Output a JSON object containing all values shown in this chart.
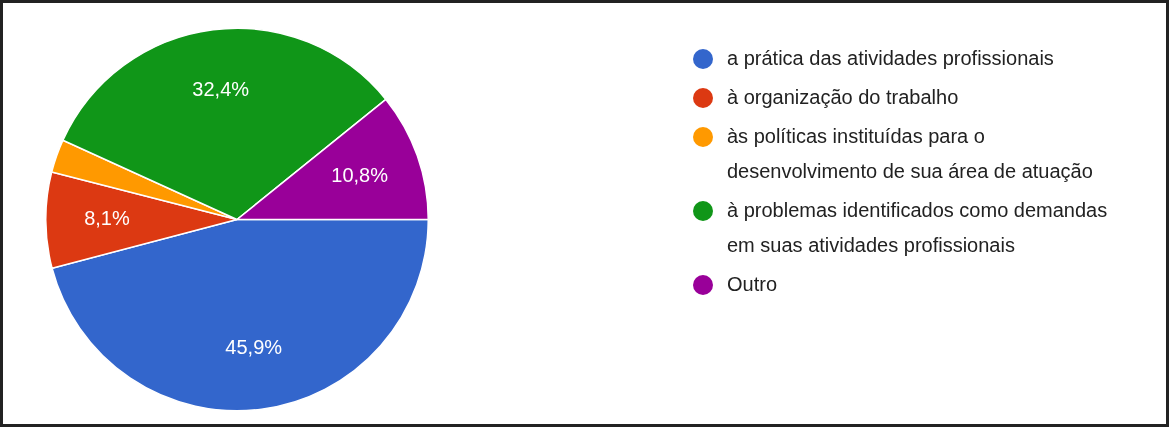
{
  "chart_data": {
    "type": "pie",
    "categories": [
      "a prática das atividades profissionais",
      "à organização do trabalho",
      "às políticas instituídas para o desenvolvimento de sua área de atuação",
      "à problemas identificados como demandas em suas atividades profissionais",
      "Outro"
    ],
    "values": [
      45.9,
      8.1,
      2.8,
      32.4,
      10.8
    ],
    "colors": [
      "#3366cc",
      "#dc3912",
      "#ff9900",
      "#109618",
      "#990099"
    ],
    "value_labels": [
      "45,9%",
      "8,1%",
      null,
      "32,4%",
      "10,8%"
    ],
    "legend": "right"
  }
}
